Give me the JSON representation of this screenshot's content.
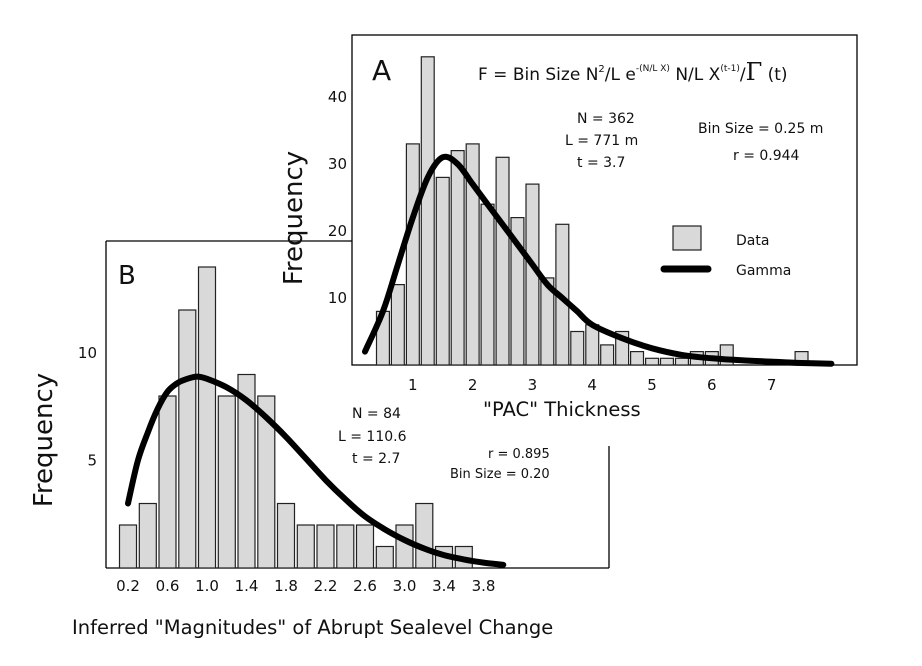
{
  "chart_data": [
    {
      "panel": "A",
      "type": "bar",
      "formula": "F = Bin Size N²/L e^{-(N/L X)} N/L X^{(t-1)}/Γ(t)",
      "xlabel": "\"PAC\" Thickness",
      "ylabel": "Frequency",
      "xlim": [
        0,
        8.5
      ],
      "ylim": [
        0,
        48
      ],
      "x_ticks": [
        "1",
        "2",
        "3",
        "4",
        "5",
        "6",
        "7"
      ],
      "y_ticks": [
        "10",
        "20",
        "30",
        "40"
      ],
      "bin_width": 0.25,
      "series": [
        {
          "name": "Data",
          "type": "bar",
          "x": [
            0.5,
            0.75,
            1.0,
            1.25,
            1.5,
            1.75,
            2.0,
            2.25,
            2.5,
            2.75,
            3.0,
            3.25,
            3.5,
            3.75,
            4.0,
            4.25,
            4.5,
            4.75,
            5.0,
            5.25,
            5.5,
            5.75,
            6.0,
            6.25,
            7.5
          ],
          "values": [
            8,
            12,
            33,
            46,
            28,
            32,
            33,
            24,
            31,
            22,
            27,
            13,
            21,
            5,
            6,
            3,
            5,
            2,
            1,
            1,
            1,
            2,
            2,
            3,
            2
          ]
        },
        {
          "name": "Gamma",
          "type": "line",
          "x": [
            0.2,
            0.5,
            0.75,
            1.0,
            1.25,
            1.5,
            1.75,
            2.0,
            2.25,
            2.5,
            2.75,
            3.0,
            3.25,
            3.5,
            3.75,
            4.0,
            4.5,
            5.0,
            5.5,
            6.0,
            6.5,
            7.0,
            7.5,
            8.0
          ],
          "values": [
            2,
            8,
            15,
            22,
            28,
            31,
            30,
            27,
            24,
            21,
            18,
            15,
            12,
            10,
            8,
            6,
            4,
            2.5,
            1.5,
            1,
            0.7,
            0.5,
            0.3,
            0.2
          ]
        }
      ],
      "annotations": {
        "stats": [
          "N = 362",
          "L = 771 m",
          "t = 3.7"
        ],
        "bin_size": "Bin Size = 0.25 m",
        "r": "r = 0.944"
      }
    },
    {
      "panel": "B",
      "type": "bar",
      "xlabel": "Inferred \"Magnitudes\" of Abrupt Sealevel Change",
      "ylabel": "Frequency",
      "xlim": [
        0.1,
        4.2
      ],
      "ylim": [
        0,
        14.5
      ],
      "x_ticks": [
        "0.2",
        "0.6",
        "1.0",
        "1.4",
        "1.8",
        "2.2",
        "2.6",
        "3.0",
        "3.4",
        "3.8"
      ],
      "y_ticks": [
        "5",
        "10"
      ],
      "bin_width": 0.2,
      "series": [
        {
          "name": "Data",
          "type": "bar",
          "x": [
            0.2,
            0.4,
            0.6,
            0.8,
            1.0,
            1.2,
            1.4,
            1.6,
            1.8,
            2.0,
            2.2,
            2.4,
            2.6,
            2.8,
            3.0,
            3.2,
            3.4,
            3.6
          ],
          "values": [
            2,
            3,
            8,
            12,
            14,
            8,
            9,
            8,
            3,
            2,
            2,
            2,
            2,
            1,
            2,
            3,
            1,
            1
          ]
        },
        {
          "name": "Gamma",
          "type": "line",
          "x": [
            0.2,
            0.3,
            0.4,
            0.5,
            0.6,
            0.7,
            0.8,
            0.9,
            1.0,
            1.2,
            1.4,
            1.6,
            1.8,
            2.0,
            2.2,
            2.4,
            2.6,
            2.8,
            3.0,
            3.2,
            3.4,
            3.6,
            3.8,
            4.0
          ],
          "values": [
            3,
            5,
            6.3,
            7.4,
            8.2,
            8.6,
            8.8,
            8.9,
            8.8,
            8.4,
            7.8,
            7,
            6.1,
            5.1,
            4.1,
            3.2,
            2.4,
            1.8,
            1.3,
            0.9,
            0.6,
            0.4,
            0.25,
            0.15
          ]
        }
      ],
      "annotations": {
        "stats": [
          "N = 84",
          "L = 110.6",
          "t = 2.7"
        ],
        "r": "r = 0.895",
        "bin_size": "Bin Size = 0.20"
      }
    }
  ],
  "legend": {
    "data_label": "Data",
    "gamma_label": "Gamma"
  },
  "colors": {
    "bar_fill": "#d9d9d9",
    "bar_stroke": "#222222",
    "curve": "#000000"
  }
}
